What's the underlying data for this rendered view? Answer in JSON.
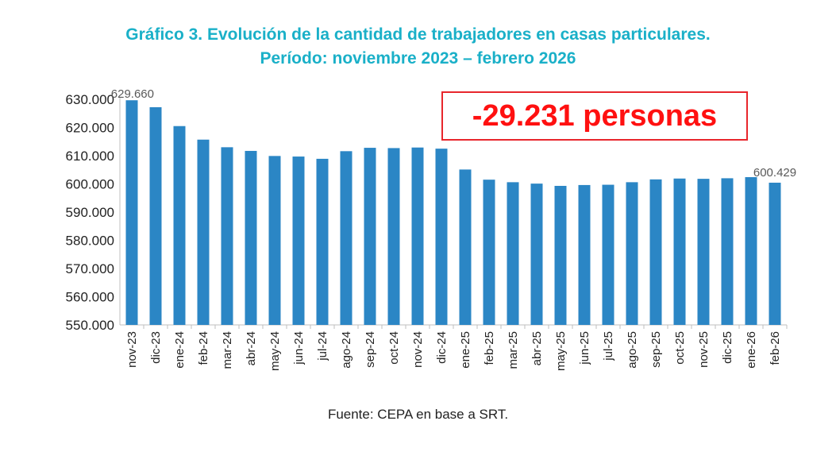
{
  "title_line1": "Gráfico 3. Evolución de la cantidad de trabajadores en casas particulares.",
  "title_line2": "Período: noviembre 2023 – febrero 2026",
  "callout": "-29.231 personas",
  "source": "Fuente: CEPA en base a SRT.",
  "colors": {
    "bar": "#2b86c5",
    "title": "#1ab0c8",
    "callout": "#ff1010"
  },
  "chart_data": {
    "type": "bar",
    "categories": [
      "nov-23",
      "dic-23",
      "ene-24",
      "feb-24",
      "mar-24",
      "abr-24",
      "may-24",
      "jun-24",
      "jul-24",
      "ago-24",
      "sep-24",
      "oct-24",
      "nov-24",
      "dic-24",
      "ene-25",
      "feb-25",
      "mar-25",
      "abr-25",
      "may-25",
      "jun-25",
      "jul-25",
      "ago-25",
      "sep-25",
      "oct-25",
      "nov-25",
      "dic-25",
      "ene-26",
      "feb-26"
    ],
    "values": [
      629660,
      627200,
      620500,
      615700,
      613000,
      611700,
      609900,
      609700,
      608900,
      611600,
      612800,
      612700,
      612900,
      612500,
      605100,
      601500,
      600600,
      600100,
      599300,
      599600,
      599700,
      600600,
      601600,
      601900,
      601800,
      602000,
      602400,
      600429
    ],
    "data_labels": [
      {
        "index": 0,
        "text": "629.660"
      },
      {
        "index": 27,
        "text": "600.429"
      }
    ],
    "yticks": [
      "550.000",
      "560.000",
      "570.000",
      "580.000",
      "590.000",
      "600.000",
      "610.000",
      "620.000",
      "630.000"
    ],
    "ylim": [
      550000,
      630000
    ],
    "grid": false,
    "legend": "none"
  }
}
